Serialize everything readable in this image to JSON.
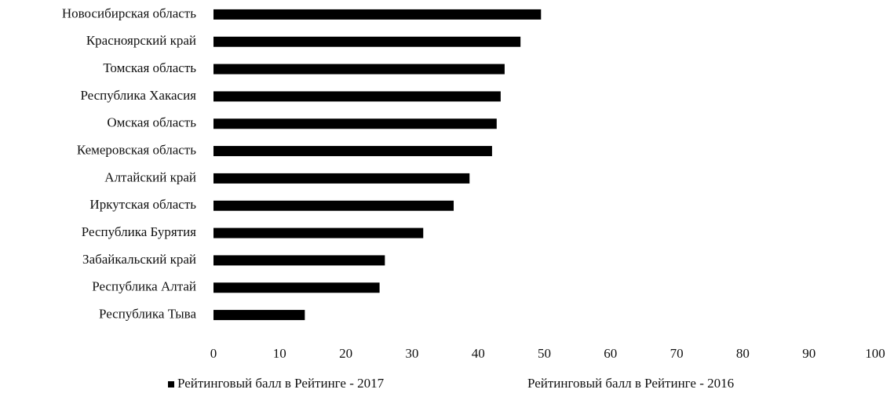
{
  "chart_data": {
    "type": "hbar",
    "categories": [
      "Новосибирская область",
      "Красноярский край",
      "Томская область",
      "Республика Хакасия",
      "Омская область",
      "Кемеровская область",
      "Алтайский край",
      "Иркутская область",
      "Республика Бурятия",
      "Забайкальский край",
      "Республика Алтай",
      "Республика Тыва"
    ],
    "series": [
      {
        "name": "Рейтинговый балл в Рейтинге - 2017",
        "color": "#000000",
        "values": [
          49.5,
          46.4,
          44.0,
          43.4,
          42.8,
          42.1,
          38.7,
          36.3,
          31.7,
          25.9,
          25.1,
          13.8
        ]
      },
      {
        "name": "Рейтинговый балл в Рейтинге - 2016",
        "color": "#ffffff",
        "values": [
          null,
          null,
          null,
          null,
          null,
          null,
          null,
          null,
          null,
          null,
          null,
          null
        ]
      }
    ],
    "xlim": [
      0,
      100
    ],
    "xticks": [
      0,
      10,
      20,
      30,
      40,
      50,
      60,
      70,
      80,
      90,
      100
    ],
    "grid": false,
    "legend": "bottom"
  }
}
